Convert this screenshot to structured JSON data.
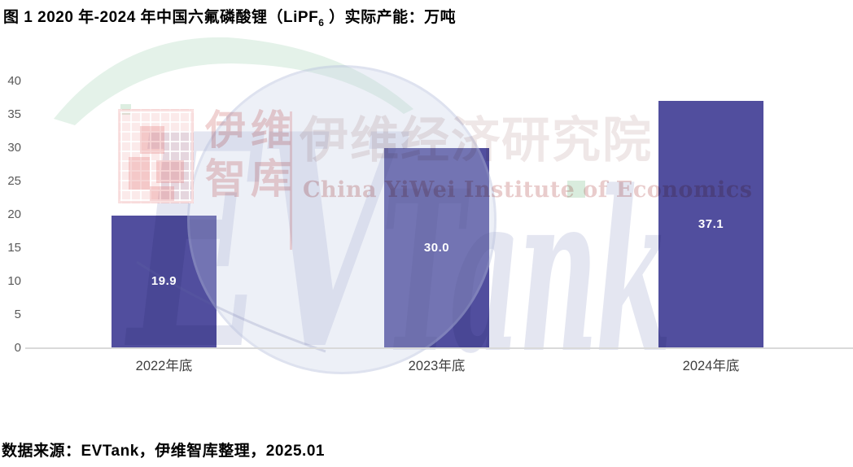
{
  "title": {
    "prefix": "图  1 2020 年-2024 年中国六氟磷酸锂（LiPF",
    "subscript": "6",
    "suffix": " ）实际产能：万吨"
  },
  "source_note": "数据来源：EVTank，伊维智库整理，2025.01",
  "watermark": {
    "brand_letters_ev": "EV",
    "brand_letters_tank": "Tank",
    "seal_lines": [
      "伊维",
      "智库"
    ],
    "brand_cn": "伊维经济研究院",
    "brand_en": "China YiWei Institute of Economics",
    "accent_green": "#d9ecdd",
    "accent_pink": "#f0d2d2",
    "accent_gray_blue": "#e4e6f1"
  },
  "chart_data": {
    "type": "bar",
    "title": "2020年-2024年中国六氟磷酸锂（LiPF6）实际产能：万吨",
    "categories": [
      "2022年底",
      "2023年底",
      "2024年底"
    ],
    "values": [
      19.9,
      30.0,
      37.1
    ],
    "value_labels": [
      "19.9",
      "30.0",
      "37.1"
    ],
    "xlabel": "",
    "ylabel": "",
    "ylim": [
      0,
      40
    ],
    "yticks": [
      0,
      5,
      10,
      15,
      20,
      25,
      30,
      35,
      40
    ],
    "grid": false,
    "legend": "none",
    "bar_color": "#514e9e",
    "value_label_color": "#ffffff",
    "axis_color": "#d9d9d9",
    "tick_label_color": "#595959"
  }
}
